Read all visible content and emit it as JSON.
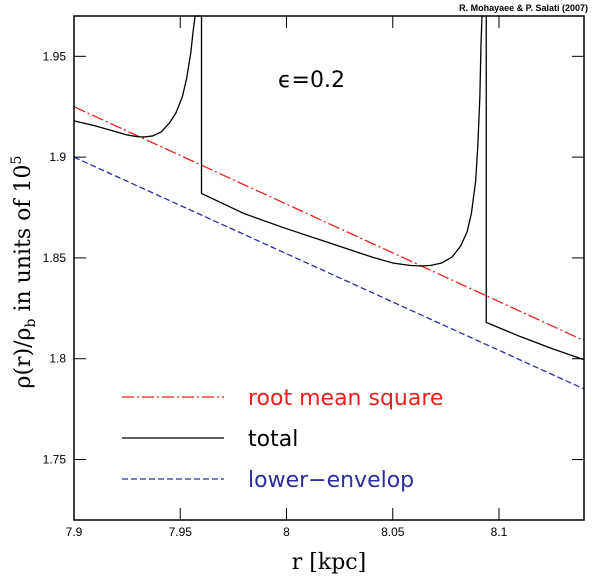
{
  "credit": "R. Mohayaee & P. Salati (2007)",
  "colors": {
    "rms": "#e8211b",
    "total": "#000000",
    "lower": "#2b2ea0"
  },
  "chart_data": {
    "type": "line",
    "xlabel": "r [kpc]",
    "ylabel_main": "ρ(r)/ρ",
    "ylabel_sub": "b",
    "ylabel_rest": " in units of 10",
    "ylabel_sup": "5",
    "annotation": "ϵ=0.2",
    "xlim": [
      7.9,
      8.14
    ],
    "ylim": [
      1.72,
      1.97
    ],
    "xticks": [
      {
        "v": 7.9,
        "label": "7.9"
      },
      {
        "v": 7.95,
        "label": "7.95"
      },
      {
        "v": 8.0,
        "label": "8"
      },
      {
        "v": 8.05,
        "label": "8.05"
      },
      {
        "v": 8.1,
        "label": "8.1"
      }
    ],
    "yticks": [
      {
        "v": 1.75,
        "label": "1.75"
      },
      {
        "v": 1.8,
        "label": "1.8"
      },
      {
        "v": 1.85,
        "label": "1.85"
      },
      {
        "v": 1.9,
        "label": "1.9"
      },
      {
        "v": 1.95,
        "label": "1.95"
      }
    ],
    "legend": [
      {
        "key": "rms",
        "label": "root mean square",
        "dash": "dashdot"
      },
      {
        "key": "total",
        "label": "total",
        "dash": "solid"
      },
      {
        "key": "lower",
        "label": "lower−envelop",
        "dash": "dashed"
      }
    ],
    "series": [
      {
        "key": "rms",
        "name": "root mean square",
        "dash": "dashdot",
        "points": [
          [
            7.9,
            1.925
          ],
          [
            8.14,
            1.809
          ]
        ]
      },
      {
        "key": "lower",
        "name": "lower−envelop",
        "dash": "dashed",
        "points": [
          [
            7.9,
            1.9
          ],
          [
            8.14,
            1.785
          ]
        ]
      },
      {
        "key": "total",
        "name": "total",
        "dash": "solid",
        "points": [
          [
            7.9,
            1.918
          ],
          [
            7.91,
            1.9155
          ],
          [
            7.92,
            1.9125
          ],
          [
            7.925,
            1.911
          ],
          [
            7.93,
            1.9101
          ],
          [
            7.933,
            1.91
          ],
          [
            7.937,
            1.9105
          ],
          [
            7.941,
            1.9125
          ],
          [
            7.945,
            1.917
          ],
          [
            7.948,
            1.922
          ],
          [
            7.951,
            1.93
          ],
          [
            7.953,
            1.939
          ],
          [
            7.955,
            1.952
          ],
          [
            7.956,
            1.962
          ],
          [
            7.957,
            1.97
          ],
          [
            7.96,
            1.97
          ],
          [
            7.96,
            1.882
          ],
          [
            7.98,
            1.872
          ],
          [
            8.0,
            1.8645
          ],
          [
            8.02,
            1.8575
          ],
          [
            8.04,
            1.8505
          ],
          [
            8.05,
            1.8475
          ],
          [
            8.058,
            1.8463
          ],
          [
            8.063,
            1.846
          ],
          [
            8.068,
            1.8463
          ],
          [
            8.073,
            1.8475
          ],
          [
            8.078,
            1.8505
          ],
          [
            8.082,
            1.856
          ],
          [
            8.085,
            1.863
          ],
          [
            8.087,
            1.872
          ],
          [
            8.089,
            1.888
          ],
          [
            8.09,
            1.905
          ],
          [
            8.091,
            1.93
          ],
          [
            8.0915,
            1.955
          ],
          [
            8.092,
            1.97
          ],
          [
            8.094,
            1.97
          ],
          [
            8.094,
            1.818
          ],
          [
            8.11,
            1.811
          ],
          [
            8.125,
            1.805
          ],
          [
            8.14,
            1.7995
          ]
        ]
      }
    ]
  }
}
